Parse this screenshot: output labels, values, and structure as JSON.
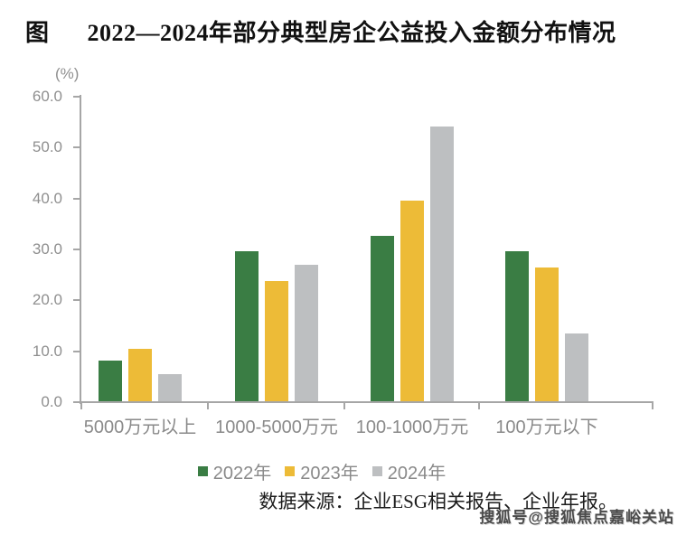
{
  "header": {
    "figure_label": "图",
    "title": "2022—2024年部分典型房企公益投入金额分布情况"
  },
  "chart_data": {
    "type": "bar",
    "title": "2022—2024年部分典型房企公益投入金额分布情况",
    "unit": "(%)",
    "categories": [
      "5000万元以上",
      "1000-5000万元",
      "100-1000万元",
      "100万元以下"
    ],
    "series": [
      {
        "name": "2022年",
        "color": "#3a7d44",
        "values": [
          7.9,
          29.5,
          32.4,
          29.5
        ]
      },
      {
        "name": "2023年",
        "color": "#edbb37",
        "values": [
          10.3,
          23.6,
          39.4,
          26.2
        ]
      },
      {
        "name": "2024年",
        "color": "#bdbfc1",
        "values": [
          5.3,
          26.8,
          53.9,
          13.4
        ]
      }
    ],
    "ylim": [
      0,
      60
    ],
    "ytick_labels": [
      "0.0",
      "10.0",
      "20.0",
      "30.0",
      "40.0",
      "50.0",
      "60.0"
    ],
    "grid": false,
    "legend_position": "bottom"
  },
  "footer": {
    "source": "数据来源：企业ESG相关报告、企业年报。",
    "watermark": "搜狐号@搜狐焦点嘉峪关站"
  },
  "colors": {
    "axis": "#a6a6a6",
    "tick_label": "#8f8f8f",
    "category_label": "#8a8a8a",
    "title_text": "#111111"
  }
}
